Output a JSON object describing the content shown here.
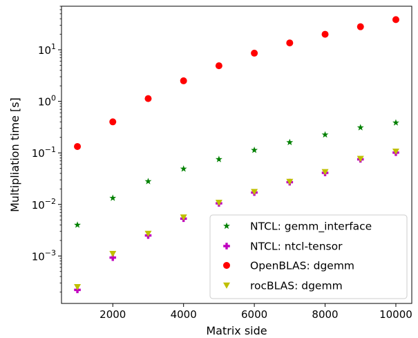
{
  "chart_data": {
    "type": "scatter",
    "title": "",
    "xlabel": "Matrix side",
    "ylabel": "Multipliation time [s]",
    "xlim": [
      550,
      10450
    ],
    "ylim": [
      0.00012,
      70
    ],
    "yscale": "log",
    "grid": false,
    "legend_position": "lower-right",
    "x_ticks": [
      2000,
      4000,
      6000,
      8000,
      10000
    ],
    "x_tick_labels": [
      "2000",
      "4000",
      "6000",
      "8000",
      "10000"
    ],
    "y_ticks": [
      {
        "value": 0.001,
        "base": "10",
        "exp": "−3"
      },
      {
        "value": 0.01,
        "base": "10",
        "exp": "−2"
      },
      {
        "value": 0.1,
        "base": "10",
        "exp": "−1"
      },
      {
        "value": 1,
        "base": "10",
        "exp": "0"
      },
      {
        "value": 10,
        "base": "10",
        "exp": "1"
      }
    ],
    "x": [
      1000,
      2000,
      3000,
      4000,
      5000,
      6000,
      7000,
      8000,
      9000,
      10000
    ],
    "series": [
      {
        "name": "NTCL: gemm_interface",
        "marker": "star",
        "color": "#008000",
        "values": [
          0.004,
          0.0133,
          0.028,
          0.049,
          0.075,
          0.113,
          0.16,
          0.225,
          0.31,
          0.385
        ]
      },
      {
        "name": "NTCL: ntcl-tensor",
        "marker": "plus",
        "color": "#bf00bf",
        "values": [
          0.00022,
          0.00093,
          0.0025,
          0.0053,
          0.0105,
          0.017,
          0.027,
          0.041,
          0.075,
          0.101
        ]
      },
      {
        "name": "OpenBLAS: dgemm",
        "marker": "circle",
        "color": "#ff0000",
        "values": [
          0.133,
          0.4,
          1.13,
          2.5,
          4.9,
          8.6,
          13.6,
          20.0,
          28.0,
          38.5
        ]
      },
      {
        "name": "rocBLAS: dgemm",
        "marker": "triangle-down",
        "color": "#bfbf00",
        "values": [
          0.00025,
          0.0011,
          0.0027,
          0.0056,
          0.0108,
          0.0175,
          0.0275,
          0.0425,
          0.0768,
          0.106
        ]
      }
    ]
  }
}
